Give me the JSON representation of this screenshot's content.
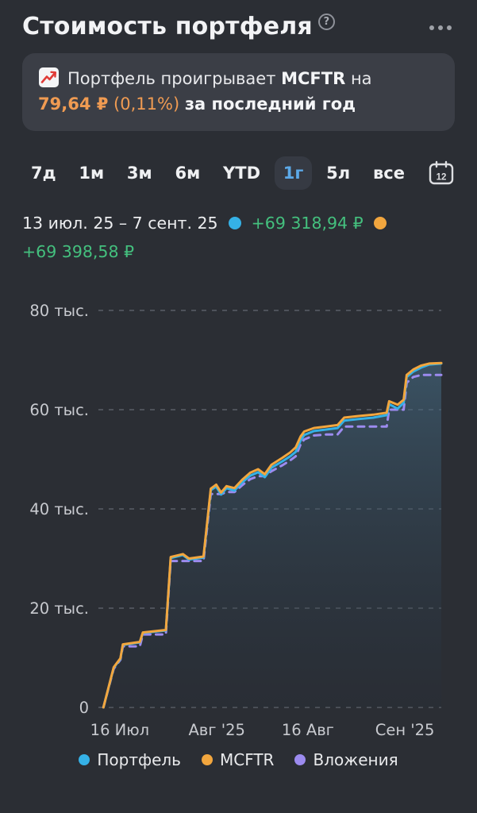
{
  "header": {
    "title": "Стоимость портфеля",
    "help": "?"
  },
  "banner": {
    "line1_pre": "Портфель проигрывает ",
    "benchmark": "MCFTR",
    "line1_post": " на",
    "amount": "79,64 ₽",
    "percent": "(0,11%)",
    "suffix": "за последний год"
  },
  "tabs": {
    "items": [
      "7д",
      "1м",
      "3м",
      "6м",
      "YTD",
      "1г",
      "5л",
      "все"
    ],
    "active": "1г",
    "calendar_day": "12"
  },
  "summary": {
    "date_range": "13 июл. 25 – 7 сент. 25",
    "portfolio_value": "+69 318,94 ₽",
    "benchmark_value": "+69 398,58 ₽"
  },
  "colors": {
    "portfolio": "#35B1E6",
    "benchmark": "#F2A63E",
    "deposits": "#9C8BEF",
    "gain_green": "#44C07E",
    "accent_orange": "#F09B52",
    "tab_active_blue": "#5CA9E8",
    "background": "#2B2E34",
    "card": "#3B3E46"
  },
  "chart_data": {
    "type": "line",
    "title": "",
    "xlabel": "",
    "ylabel": "",
    "grid": "dashed horizontal",
    "legend_position": "bottom center",
    "xlim_days": [
      0,
      56
    ],
    "ylim_thousands": [
      0,
      80
    ],
    "yticks": [
      {
        "label": "80 тыс.",
        "value": 80
      },
      {
        "label": "60 тыс.",
        "value": 60
      },
      {
        "label": "40 тыс.",
        "value": 40
      },
      {
        "label": "20 тыс.",
        "value": 20
      },
      {
        "label": "0",
        "value": 0
      }
    ],
    "xticks": [
      {
        "label": "16 Июл",
        "day": 3
      },
      {
        "label": "Авг '25",
        "day": 19
      },
      {
        "label": "16 Авг",
        "day": 34
      },
      {
        "label": "Сен '25",
        "day": 50
      }
    ],
    "x_days": [
      0.3,
      2.0,
      3.1,
      3.5,
      6.3,
      6.8,
      9.8,
      10.6,
      11.4,
      13.4,
      14.4,
      16.8,
      18.0,
      18.9,
      19.7,
      20.6,
      21.9,
      23.2,
      24.5,
      25.8,
      26.9,
      28.0,
      29.8,
      31.1,
      32.0,
      32.8,
      33.4,
      35.0,
      37.0,
      38.9,
      40.0,
      42.2,
      44.8,
      47.0,
      47.4,
      48.8,
      49.8,
      50.3,
      51.4,
      52.7,
      54.0,
      56.0
    ],
    "series": [
      {
        "name": "Портфель",
        "color": "#35B1E6",
        "style": "solid",
        "values_thousands": [
          0,
          8.0,
          9.8,
          12.6,
          13.1,
          15.0,
          15.4,
          15.5,
          30.1,
          30.7,
          29.8,
          30.2,
          43.8,
          44.5,
          42.9,
          44.2,
          43.7,
          45.4,
          46.7,
          47.4,
          46.4,
          48.3,
          49.6,
          50.6,
          51.5,
          53.8,
          54.9,
          55.7,
          56.0,
          56.3,
          57.8,
          58.1,
          58.4,
          58.9,
          61.1,
          60.2,
          61.4,
          66.6,
          67.7,
          68.5,
          69.1,
          69.3
        ]
      },
      {
        "name": "MCFTR",
        "color": "#F2A63E",
        "style": "solid",
        "values_thousands": [
          0,
          8.1,
          9.9,
          12.7,
          13.2,
          15.1,
          15.5,
          15.6,
          30.3,
          30.9,
          30.0,
          30.4,
          44.1,
          44.9,
          43.3,
          44.6,
          44.2,
          45.9,
          47.3,
          48.0,
          47.0,
          48.9,
          50.3,
          51.4,
          52.4,
          54.6,
          55.6,
          56.3,
          56.6,
          56.9,
          58.4,
          58.7,
          59.0,
          59.4,
          61.7,
          61.0,
          62.0,
          67.0,
          68.1,
          68.9,
          69.3,
          69.4
        ]
      },
      {
        "name": "Вложения",
        "color": "#9C8BEF",
        "style": "dashed",
        "values_thousands": [
          0,
          7.8,
          9.6,
          12.3,
          12.3,
          14.7,
          14.7,
          14.7,
          29.5,
          29.5,
          29.5,
          29.5,
          43.0,
          43.0,
          43.0,
          43.4,
          43.4,
          44.8,
          46.0,
          46.6,
          46.6,
          47.6,
          48.8,
          49.8,
          50.6,
          53.0,
          54.0,
          54.8,
          55.0,
          55.0,
          56.6,
          56.6,
          56.6,
          56.6,
          60.0,
          60.0,
          60.0,
          65.4,
          66.6,
          67.0,
          67.0,
          67.0
        ]
      }
    ],
    "legend": [
      "Портфель",
      "MCFTR",
      "Вложения"
    ]
  }
}
